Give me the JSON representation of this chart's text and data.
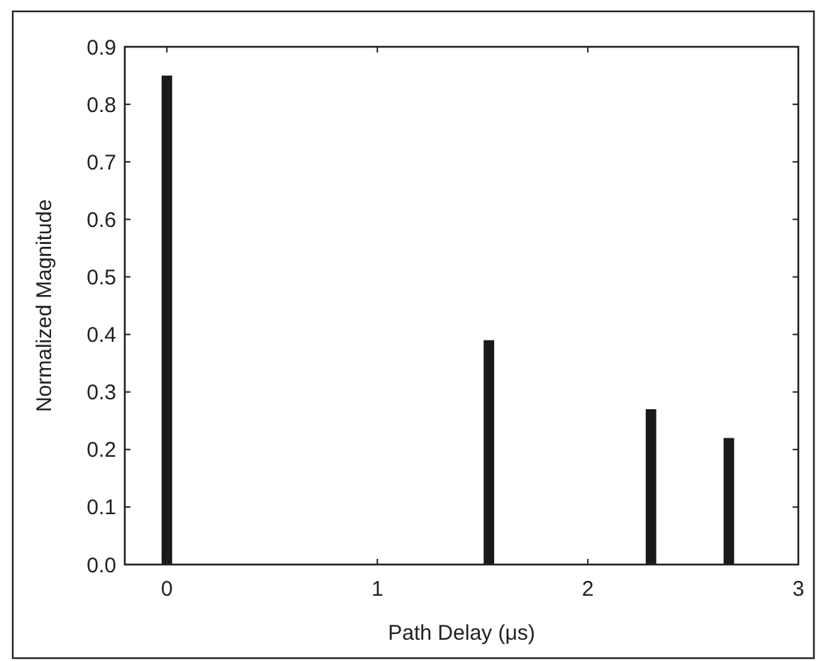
{
  "chart_data": {
    "type": "bar",
    "xlabel": "Path Delay (μs)",
    "ylabel": "Normalized Magnitude",
    "x": [
      0,
      1.53,
      2.3,
      2.67
    ],
    "values": [
      0.85,
      0.39,
      0.27,
      0.22
    ],
    "color": "#1a1a1a",
    "xlim": [
      -0.2,
      3
    ],
    "xticks": [
      0,
      1,
      2,
      3
    ],
    "ylim": [
      0,
      0.9
    ],
    "yticks": [
      {
        "value": 0,
        "label": "0.0"
      },
      0.1,
      0.2,
      0.3,
      0.4,
      0.5,
      0.6,
      0.7,
      0.8,
      0.9
    ],
    "grid": false
  }
}
